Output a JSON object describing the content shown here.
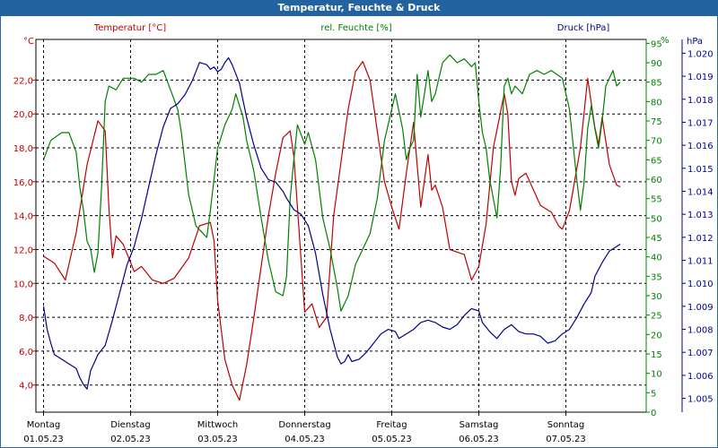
{
  "window": {
    "title": "Temperatur, Feuchte & Druck"
  },
  "colors": {
    "temp": "#c00000",
    "hum": "#008000",
    "press": "#00008c",
    "grid": "#000000",
    "title_bg": "#22629f"
  },
  "chart_data": {
    "type": "line",
    "title": "Temperatur, Feuchte & Druck",
    "x_unit": "hours since 01.05.23 00:00",
    "days": [
      {
        "weekday": "Montag",
        "date": "01.05.23"
      },
      {
        "weekday": "Dienstag",
        "date": "02.05.23"
      },
      {
        "weekday": "Mittwoch",
        "date": "03.05.23"
      },
      {
        "weekday": "Donnerstag",
        "date": "04.05.23"
      },
      {
        "weekday": "Freitag",
        "date": "05.05.23"
      },
      {
        "weekday": "Samstag",
        "date": "06.05.23"
      },
      {
        "weekday": "Sonntag",
        "date": "07.05.23"
      }
    ],
    "xlim": [
      0,
      168
    ],
    "axes": {
      "temp": {
        "label": "Temperatur [°C]",
        "unit_label": "°C",
        "ylim": [
          2.4,
          24.4
        ],
        "ticks": [
          "4,0",
          "6,0",
          "8,0",
          "10,0",
          "12,0",
          "14,0",
          "16,0",
          "18,0",
          "20,0",
          "22,0"
        ]
      },
      "hum": {
        "label": "rel. Feuchte [%]",
        "unit_label": "%",
        "ylim": [
          0,
          96
        ],
        "ticks": [
          "0",
          "5",
          "10",
          "15",
          "20",
          "25",
          "30",
          "35",
          "40",
          "45",
          "50",
          "55",
          "60",
          "65",
          "70",
          "75",
          "80",
          "85",
          "90",
          "95"
        ]
      },
      "press": {
        "label": "Druck [hPa]",
        "unit_label": "hPa",
        "ylim": [
          1004.4,
          1020.6
        ],
        "ticks": [
          "1.005",
          "1.006",
          "1.007",
          "1.008",
          "1.009",
          "1.010",
          "1.011",
          "1.012",
          "1.013",
          "1.014",
          "1.015",
          "1.016",
          "1.017",
          "1.018",
          "1.019",
          "1.020"
        ]
      }
    },
    "grid": true,
    "series": [
      {
        "name": "Temperatur [°C]",
        "axis": "temp",
        "color": "#c00000",
        "points": [
          [
            0,
            11.6
          ],
          [
            3,
            11.2
          ],
          [
            6,
            10.2
          ],
          [
            9,
            13.0
          ],
          [
            12,
            17.0
          ],
          [
            15,
            19.6
          ],
          [
            17,
            19.0
          ],
          [
            18,
            14.5
          ],
          [
            19,
            11.5
          ],
          [
            20,
            12.8
          ],
          [
            22,
            12.3
          ],
          [
            25,
            10.7
          ],
          [
            27,
            11.0
          ],
          [
            30,
            10.2
          ],
          [
            33,
            10.0
          ],
          [
            36,
            10.3
          ],
          [
            40,
            11.5
          ],
          [
            43,
            13.4
          ],
          [
            46,
            13.6
          ],
          [
            47,
            12.5
          ],
          [
            48,
            9.0
          ],
          [
            50,
            5.5
          ],
          [
            52,
            4.0
          ],
          [
            54,
            3.1
          ],
          [
            56,
            5.2
          ],
          [
            58,
            8.0
          ],
          [
            62,
            14.0
          ],
          [
            64,
            16.5
          ],
          [
            66,
            18.6
          ],
          [
            68,
            19.0
          ],
          [
            69,
            17.5
          ],
          [
            70,
            14.5
          ],
          [
            72,
            8.3
          ],
          [
            74,
            8.8
          ],
          [
            76,
            7.4
          ],
          [
            78,
            8.0
          ],
          [
            80,
            14.0
          ],
          [
            84,
            20.3
          ],
          [
            86,
            22.5
          ],
          [
            88,
            23.1
          ],
          [
            90,
            22.0
          ],
          [
            94,
            16.0
          ],
          [
            96,
            14.5
          ],
          [
            98,
            13.2
          ],
          [
            100,
            16.5
          ],
          [
            102,
            19.5
          ],
          [
            104,
            14.5
          ],
          [
            106,
            17.6
          ],
          [
            107,
            15.5
          ],
          [
            108,
            15.8
          ],
          [
            110,
            14.5
          ],
          [
            112,
            12.0
          ],
          [
            116,
            11.7
          ],
          [
            118,
            10.2
          ],
          [
            120,
            11.0
          ],
          [
            122,
            13.5
          ],
          [
            124,
            18.0
          ],
          [
            127,
            21.2
          ],
          [
            128,
            20.0
          ],
          [
            129,
            16.0
          ],
          [
            130,
            15.2
          ],
          [
            131,
            16.2
          ],
          [
            133,
            16.5
          ],
          [
            137,
            14.6
          ],
          [
            140,
            14.2
          ],
          [
            142,
            13.4
          ],
          [
            143,
            13.2
          ],
          [
            145,
            14.3
          ],
          [
            148,
            18.0
          ],
          [
            150,
            22.1
          ],
          [
            152,
            19.2
          ],
          [
            153,
            18.2
          ],
          [
            154,
            19.8
          ],
          [
            156,
            17.0
          ],
          [
            158,
            15.8
          ],
          [
            159,
            15.7
          ]
        ]
      },
      {
        "name": "rel. Feuchte [%]",
        "axis": "hum",
        "color": "#008000",
        "points": [
          [
            0,
            65
          ],
          [
            2,
            70
          ],
          [
            5,
            72
          ],
          [
            7,
            72
          ],
          [
            9,
            67
          ],
          [
            10,
            58
          ],
          [
            11,
            52
          ],
          [
            12,
            44
          ],
          [
            13,
            42
          ],
          [
            14,
            36
          ],
          [
            15,
            41
          ],
          [
            16,
            58
          ],
          [
            17,
            80
          ],
          [
            18,
            84
          ],
          [
            20,
            83
          ],
          [
            22,
            86
          ],
          [
            25,
            86
          ],
          [
            27,
            85
          ],
          [
            29,
            87
          ],
          [
            31,
            87
          ],
          [
            33,
            88
          ],
          [
            35,
            83
          ],
          [
            37,
            78
          ],
          [
            38,
            72
          ],
          [
            40,
            56
          ],
          [
            42,
            48
          ],
          [
            44,
            46
          ],
          [
            45,
            45
          ],
          [
            46,
            52
          ],
          [
            48,
            68
          ],
          [
            50,
            74
          ],
          [
            52,
            78
          ],
          [
            53,
            82
          ],
          [
            55,
            76
          ],
          [
            56,
            70
          ],
          [
            58,
            62
          ],
          [
            60,
            50
          ],
          [
            62,
            39
          ],
          [
            64,
            31
          ],
          [
            66,
            30
          ],
          [
            67,
            35
          ],
          [
            68,
            55
          ],
          [
            69,
            65
          ],
          [
            70,
            74
          ],
          [
            72,
            69
          ],
          [
            73,
            72
          ],
          [
            75,
            65
          ],
          [
            77,
            50
          ],
          [
            79,
            42
          ],
          [
            81,
            32
          ],
          [
            82,
            26
          ],
          [
            84,
            30
          ],
          [
            86,
            38
          ],
          [
            90,
            46
          ],
          [
            92,
            55
          ],
          [
            94,
            70
          ],
          [
            96,
            78
          ],
          [
            97,
            82
          ],
          [
            99,
            73
          ],
          [
            100,
            65
          ],
          [
            101,
            68
          ],
          [
            102,
            70
          ],
          [
            103,
            87
          ],
          [
            104,
            76
          ],
          [
            105,
            82
          ],
          [
            106,
            88
          ],
          [
            107,
            80
          ],
          [
            108,
            82
          ],
          [
            110,
            90
          ],
          [
            112,
            92
          ],
          [
            114,
            90
          ],
          [
            116,
            91
          ],
          [
            118,
            89
          ],
          [
            119,
            90
          ],
          [
            120,
            80
          ],
          [
            121,
            72
          ],
          [
            122,
            68
          ],
          [
            123,
            60
          ],
          [
            124,
            55
          ],
          [
            125,
            50
          ],
          [
            126,
            63
          ],
          [
            127,
            84
          ],
          [
            128,
            86
          ],
          [
            129,
            82
          ],
          [
            130,
            84
          ],
          [
            132,
            82
          ],
          [
            134,
            87
          ],
          [
            136,
            88
          ],
          [
            138,
            87
          ],
          [
            140,
            88
          ],
          [
            143,
            86
          ],
          [
            145,
            78
          ],
          [
            147,
            60
          ],
          [
            148,
            52
          ],
          [
            149,
            59
          ],
          [
            150,
            73
          ],
          [
            151,
            79
          ],
          [
            152,
            73
          ],
          [
            153,
            68
          ],
          [
            154,
            75
          ],
          [
            155,
            84
          ],
          [
            156,
            86
          ],
          [
            157,
            88
          ],
          [
            158,
            84
          ],
          [
            159,
            85
          ]
        ]
      },
      {
        "name": "Druck [hPa]",
        "axis": "press",
        "color": "#00008c",
        "points": [
          [
            0,
            1009.0
          ],
          [
            1,
            1008.0
          ],
          [
            2,
            1007.4
          ],
          [
            3,
            1006.9
          ],
          [
            5,
            1006.7
          ],
          [
            7,
            1006.5
          ],
          [
            9,
            1006.3
          ],
          [
            10,
            1005.9
          ],
          [
            11,
            1005.6
          ],
          [
            12,
            1005.4
          ],
          [
            13,
            1006.2
          ],
          [
            15,
            1006.9
          ],
          [
            17,
            1007.3
          ],
          [
            19,
            1008.4
          ],
          [
            21,
            1009.6
          ],
          [
            23,
            1010.8
          ],
          [
            25,
            1011.6
          ],
          [
            27,
            1012.8
          ],
          [
            29,
            1014.2
          ],
          [
            31,
            1015.6
          ],
          [
            33,
            1016.8
          ],
          [
            35,
            1017.6
          ],
          [
            37,
            1017.8
          ],
          [
            39,
            1018.2
          ],
          [
            41,
            1018.8
          ],
          [
            43,
            1019.6
          ],
          [
            45,
            1019.5
          ],
          [
            46,
            1019.3
          ],
          [
            47,
            1019.4
          ],
          [
            48,
            1019.2
          ],
          [
            49,
            1019.3
          ],
          [
            50,
            1019.6
          ],
          [
            51,
            1019.8
          ],
          [
            52,
            1019.5
          ],
          [
            54,
            1018.7
          ],
          [
            56,
            1017.2
          ],
          [
            58,
            1016.0
          ],
          [
            60,
            1015.0
          ],
          [
            62,
            1014.5
          ],
          [
            64,
            1014.4
          ],
          [
            66,
            1014.0
          ],
          [
            67,
            1013.7
          ],
          [
            69,
            1013.2
          ],
          [
            71,
            1013.0
          ],
          [
            73,
            1012.5
          ],
          [
            75,
            1011.3
          ],
          [
            77,
            1009.5
          ],
          [
            79,
            1008.0
          ],
          [
            81,
            1006.8
          ],
          [
            82,
            1006.5
          ],
          [
            83,
            1006.6
          ],
          [
            84,
            1006.9
          ],
          [
            85,
            1006.6
          ],
          [
            87,
            1006.7
          ],
          [
            89,
            1007.0
          ],
          [
            91,
            1007.4
          ],
          [
            93,
            1007.8
          ],
          [
            95,
            1008.0
          ],
          [
            97,
            1007.9
          ],
          [
            98,
            1007.6
          ],
          [
            100,
            1007.8
          ],
          [
            102,
            1008.0
          ],
          [
            104,
            1008.3
          ],
          [
            106,
            1008.4
          ],
          [
            108,
            1008.3
          ],
          [
            110,
            1008.1
          ],
          [
            112,
            1008.0
          ],
          [
            114,
            1008.2
          ],
          [
            116,
            1008.6
          ],
          [
            118,
            1008.9
          ],
          [
            120,
            1008.8
          ],
          [
            121,
            1008.3
          ],
          [
            123,
            1007.9
          ],
          [
            125,
            1007.6
          ],
          [
            127,
            1008.0
          ],
          [
            129,
            1008.2
          ],
          [
            131,
            1007.9
          ],
          [
            133,
            1007.8
          ],
          [
            135,
            1007.8
          ],
          [
            137,
            1007.7
          ],
          [
            139,
            1007.4
          ],
          [
            141,
            1007.5
          ],
          [
            143,
            1007.8
          ],
          [
            145,
            1008.0
          ],
          [
            147,
            1008.5
          ],
          [
            149,
            1009.1
          ],
          [
            151,
            1009.6
          ],
          [
            152,
            1010.3
          ],
          [
            154,
            1010.9
          ],
          [
            156,
            1011.4
          ],
          [
            158,
            1011.6
          ],
          [
            159,
            1011.7
          ]
        ]
      }
    ]
  }
}
